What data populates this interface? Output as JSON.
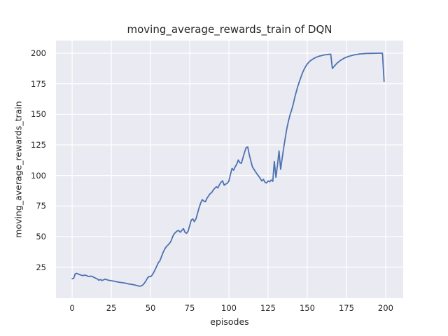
{
  "chart_data": {
    "type": "line",
    "title": "moving_average_rewards_train of DQN",
    "xlabel": "episodes",
    "ylabel": "moving_average_rewards_train",
    "legend": null,
    "grid": true,
    "xticks": [
      0,
      25,
      50,
      75,
      100,
      125,
      150,
      175,
      200
    ],
    "yticks": [
      25,
      50,
      75,
      100,
      125,
      150,
      175,
      200
    ],
    "xlim": [
      -10.3,
      211.2
    ],
    "ylim": [
      -0.4,
      210.3
    ],
    "x_start": 0,
    "x_step": 1,
    "series": [
      {
        "name": "moving_average_rewards_train",
        "values": [
          15.6,
          15.9,
          19.6,
          19.9,
          19.3,
          18.8,
          18.4,
          18.1,
          18.5,
          18.2,
          17.6,
          17.3,
          17.7,
          17.2,
          16.6,
          16.0,
          15.4,
          14.3,
          14.9,
          14.1,
          14.6,
          15.2,
          14.8,
          14.4,
          14.1,
          13.9,
          13.7,
          13.4,
          13.1,
          12.9,
          12.7,
          12.5,
          12.3,
          12.1,
          11.9,
          11.6,
          11.3,
          11.1,
          10.9,
          10.7,
          10.4,
          10.0,
          9.7,
          9.4,
          9.6,
          10.3,
          11.8,
          13.6,
          15.9,
          17.4,
          17.1,
          18.5,
          20.6,
          23.1,
          25.9,
          28.7,
          30.3,
          33.6,
          36.9,
          39.6,
          41.6,
          42.9,
          44.4,
          46.0,
          49.6,
          52.1,
          53.5,
          54.6,
          54.9,
          53.6,
          55.1,
          56.5,
          53.5,
          52.7,
          54.5,
          59.0,
          63.5,
          64.4,
          62.2,
          64.5,
          69.0,
          73.5,
          77.4,
          80.2,
          79.0,
          78.5,
          81.3,
          83.2,
          85.0,
          86.0,
          88.0,
          89.5,
          90.8,
          89.8,
          92.5,
          94.5,
          95.6,
          92.0,
          93.0,
          93.6,
          95.5,
          100.8,
          105.8,
          104.3,
          107.0,
          109.2,
          112.6,
          110.4,
          110.0,
          114.5,
          119.0,
          122.8,
          123.3,
          117.0,
          112.0,
          107.0,
          105.0,
          103.0,
          101.0,
          99.5,
          97.5,
          95.5,
          96.8,
          94.5,
          93.8,
          95.5,
          94.8,
          96.3,
          95.2,
          111.5,
          98.5,
          108.5,
          120.0,
          105.0,
          114.0,
          123.0,
          131.0,
          138.5,
          144.5,
          149.5,
          153.5,
          158.0,
          163.5,
          168.5,
          173.0,
          177.0,
          180.5,
          184.0,
          186.8,
          189.2,
          191.2,
          192.6,
          193.8,
          194.7,
          195.5,
          196.2,
          196.8,
          197.3,
          197.7,
          198.0,
          198.3,
          198.6,
          198.8,
          199.0,
          199.1,
          199.2,
          187.5,
          189.0,
          190.5,
          191.8,
          192.9,
          193.9,
          194.8,
          195.5,
          196.2,
          196.7,
          197.2,
          197.6,
          198.0,
          198.3,
          198.6,
          198.9,
          199.1,
          199.3,
          199.4,
          199.5,
          199.6,
          199.7,
          199.75,
          199.8,
          199.85,
          199.9,
          199.9,
          199.95,
          199.95,
          200.0,
          200.0,
          200.0,
          200.0,
          177.0
        ]
      }
    ],
    "colors": {
      "line": "#4c72b0",
      "plot_background": "#eaeaf2",
      "grid": "#ffffff",
      "text": "#262626",
      "figure_background": "#ffffff"
    }
  }
}
